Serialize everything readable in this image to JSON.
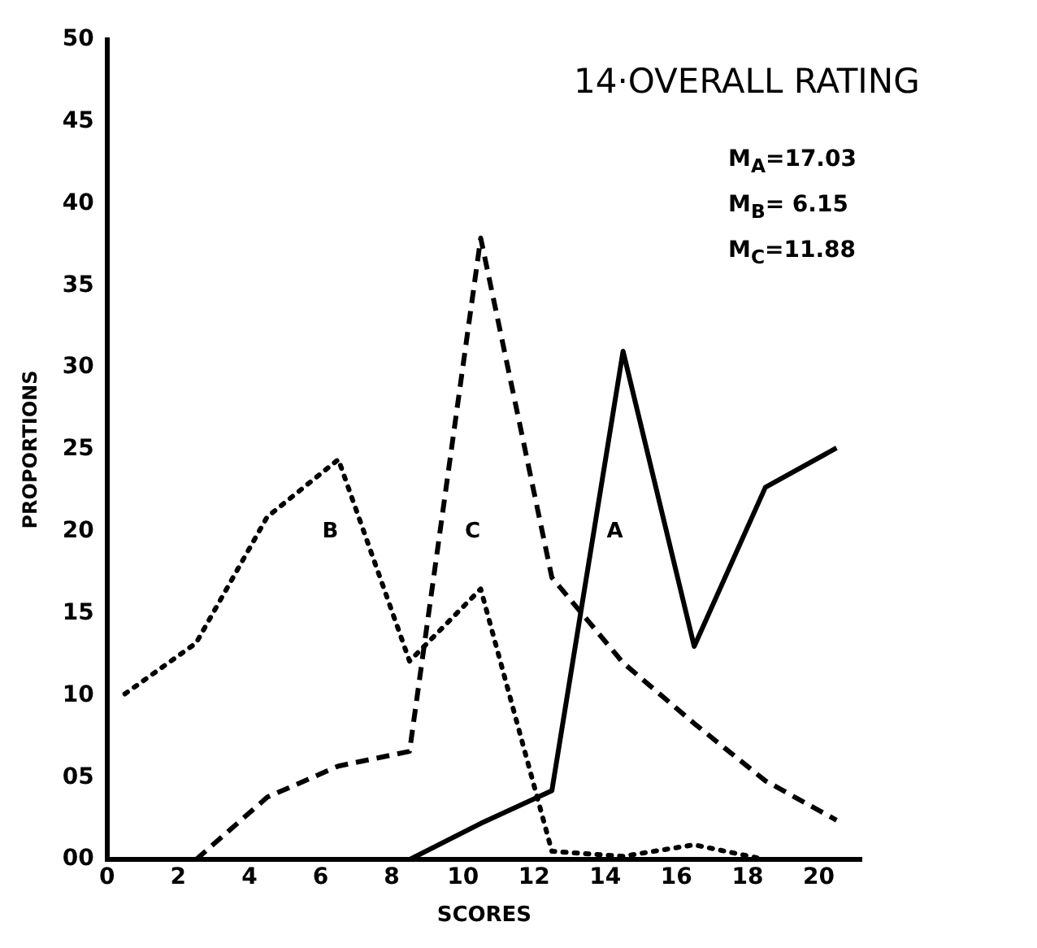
{
  "chart_data": {
    "type": "line",
    "title": "14·OVERALL RATING",
    "xlabel": "SCORES",
    "ylabel": "PROPORTIONS",
    "series": [
      {
        "name": "A",
        "color": "#000000",
        "line_style": "solid",
        "x": [
          8.5,
          10.5,
          12.5,
          14.5,
          16.5,
          18.5,
          20.5
        ],
        "values": [
          0,
          2.2,
          4.2,
          31,
          13,
          22.7,
          25.1
        ]
      },
      {
        "name": "B",
        "color": "#000000",
        "line_style": "dotted",
        "x": [
          0.5,
          2.5,
          4.5,
          6.5,
          8.5,
          10.5,
          12.5,
          14.5,
          16.5,
          18.5
        ],
        "values": [
          10.1,
          13.2,
          20.9,
          24.4,
          12.1,
          16.5,
          0.5,
          0.2,
          0.9,
          0
        ]
      },
      {
        "name": "C",
        "color": "#000000",
        "line_style": "dashed",
        "x": [
          2.5,
          4.5,
          6.5,
          8.5,
          10.5,
          12.5,
          14.5,
          16.5,
          18.5,
          20.5
        ],
        "values": [
          0,
          3.8,
          5.7,
          6.6,
          37.9,
          17.2,
          12,
          8.3,
          4.8,
          2.4
        ]
      }
    ],
    "xlim": [
      0,
      21.2
    ],
    "xticks": [
      0,
      2,
      4,
      6,
      8,
      10,
      12,
      14,
      16,
      18,
      20
    ],
    "ylim": [
      0,
      50
    ],
    "yticks": [
      {
        "value": 0,
        "label": "00"
      },
      {
        "value": 5,
        "label": "05"
      },
      10,
      15,
      20,
      25,
      30,
      35,
      40,
      45,
      50
    ],
    "grid": false,
    "legend": false,
    "marker": "none",
    "annotations": [
      "M$_{A}$=17.03",
      "M$_{B}$= 6.15",
      "M$_{C}$=11.88"
    ]
  }
}
